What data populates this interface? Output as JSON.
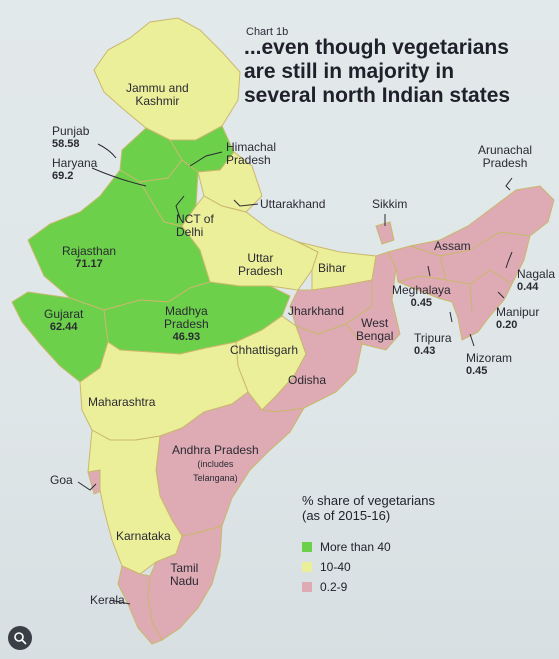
{
  "chart_tag": "Chart 1b",
  "headline": [
    "...even though vegetarians",
    "are still in majority in",
    "several north Indian states"
  ],
  "legend": {
    "title_line1": "% share of vegetarians",
    "title_line2": "(as of 2015-16)",
    "items": [
      {
        "label": "More than 40",
        "color": "#6cd04a"
      },
      {
        "label": "10-40",
        "color": "#ecef9a"
      },
      {
        "label": "0.2-9",
        "color": "#deaab4"
      }
    ]
  },
  "states": {
    "jammu": {
      "name": "Jammu and",
      "name2": "Kashmir"
    },
    "punjab": {
      "name": "Punjab",
      "value": "58.58"
    },
    "haryana": {
      "name": "Haryana",
      "value": "69.2"
    },
    "himachal": {
      "name": "Himachal",
      "name2": "Pradesh"
    },
    "uttarakhand": {
      "name": "Uttarakhand"
    },
    "delhi": {
      "name": "NCT of",
      "name2": "Delhi"
    },
    "rajasthan": {
      "name": "Rajasthan",
      "value": "71.17"
    },
    "gujarat": {
      "name": "Gujarat",
      "value": "62.44"
    },
    "mp": {
      "name": "Madhya",
      "name2": "Pradesh",
      "value": "46.93"
    },
    "up": {
      "name": "Uttar",
      "name2": "Pradesh"
    },
    "bihar": {
      "name": "Bihar"
    },
    "jharkhand": {
      "name": "Jharkhand"
    },
    "wb": {
      "name": "West",
      "name2": "Bengal"
    },
    "chhattisgarh": {
      "name": "Chhattisgarh"
    },
    "odisha": {
      "name": "Odisha"
    },
    "maharashtra": {
      "name": "Maharashtra"
    },
    "ap": {
      "name": "Andhra Pradesh",
      "note1": "(includes",
      "note2": "Telangana)"
    },
    "goa": {
      "name": "Goa"
    },
    "karnataka": {
      "name": "Karnataka"
    },
    "tn": {
      "name": "Tamil",
      "name2": "Nadu"
    },
    "kerala": {
      "name": "Kerala"
    },
    "sikkim": {
      "name": "Sikkim"
    },
    "arunachal": {
      "name": "Arunachal",
      "name2": "Pradesh"
    },
    "assam": {
      "name": "Assam"
    },
    "meghalaya": {
      "name": "Meghalaya",
      "value": "0.45"
    },
    "nagaland": {
      "name": "Nagala",
      "value": "0.44"
    },
    "manipur": {
      "name": "Manipur",
      "value": "0.20"
    },
    "tripura": {
      "name": "Tripura",
      "value": "0.43"
    },
    "mizoram": {
      "name": "Mizoram",
      "value": "0.45"
    }
  }
}
